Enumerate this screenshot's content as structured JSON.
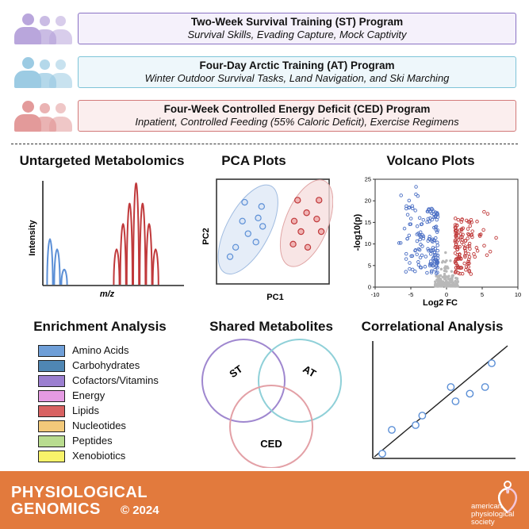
{
  "programs": [
    {
      "title": "Two-Week Survival Training (ST) Program",
      "subtitle": "Survival Skills, Evading Capture, Mock Captivity",
      "color": "#b9a6dc",
      "bg": "#f5f1fb",
      "border": "#8a72c4"
    },
    {
      "title": "Four-Day Arctic Training (AT) Program",
      "subtitle": "Winter Outdoor Survival Tasks, Land Navigation, and Ski Marching",
      "color": "#9ccbe3",
      "bg": "#eef7fb",
      "border": "#7ec4d8"
    },
    {
      "title": "Four-Week Controlled Energy Deficit (CED) Program",
      "subtitle": "Inpatient, Controlled Feeding (55% Caloric Deficit), Exercise Regimens",
      "color": "#e39a9a",
      "bg": "#fbeeee",
      "border": "#d27a7a"
    }
  ],
  "sections": {
    "metabolomics": {
      "title": "Untargeted Metabolomics",
      "ylabel": "Intensity",
      "xlabel": "m/z"
    },
    "pca": {
      "title": "PCA Plots",
      "xlabel": "PC1",
      "ylabel": "PC2"
    },
    "volcano": {
      "title": "Volcano Plots",
      "xlabel": "Log2 FC",
      "ylabel": "-log10(p)"
    },
    "enrichment": {
      "title": "Enrichment Analysis"
    },
    "shared": {
      "title": "Shared Metabolites"
    },
    "correlational": {
      "title": "Correlational Analysis"
    }
  },
  "legend": [
    {
      "label": "Amino Acids",
      "color": "#6f9fd8"
    },
    {
      "label": "Carbohydrates",
      "color": "#4f86b3"
    },
    {
      "label": "Cofactors/Vitamins",
      "color": "#9b7fd0"
    },
    {
      "label": "Energy",
      "color": "#e59be3"
    },
    {
      "label": "Lipids",
      "color": "#d86262"
    },
    {
      "label": "Nucleotides",
      "color": "#f2c97a"
    },
    {
      "label": "Peptides",
      "color": "#b9dc8f"
    },
    {
      "label": "Xenobiotics",
      "color": "#f8f36a"
    }
  ],
  "venn": {
    "sets": [
      "ST",
      "AT",
      "CED"
    ],
    "colors": [
      "#9f87cf",
      "#8fd0d8",
      "#e3a0a6"
    ]
  },
  "chart_data": [
    {
      "type": "line",
      "title": "Untargeted Metabolomics",
      "xlabel": "m/z",
      "ylabel": "Intensity",
      "series": [
        {
          "name": "blue peaks",
          "color": "#5b8fd6",
          "peaks": [
            0.45,
            0.35,
            0.15
          ]
        },
        {
          "name": "red peaks",
          "color": "#c0393b",
          "peaks": [
            0.35,
            0.6,
            0.8,
            1.0,
            0.8,
            0.6,
            0.35
          ]
        }
      ]
    },
    {
      "type": "scatter",
      "title": "PCA Plots",
      "xlabel": "PC1",
      "ylabel": "PC2",
      "series": [
        {
          "name": "group 1",
          "color": "#5b8fd6",
          "points": [
            [
              0.25,
              0.78
            ],
            [
              0.4,
              0.74
            ],
            [
              0.37,
              0.63
            ],
            [
              0.23,
              0.6
            ],
            [
              0.41,
              0.55
            ],
            [
              0.28,
              0.48
            ],
            [
              0.35,
              0.4
            ],
            [
              0.17,
              0.35
            ],
            [
              0.12,
              0.26
            ]
          ]
        },
        {
          "name": "group 2",
          "color": "#c0393b",
          "points": [
            [
              0.72,
              0.8
            ],
            [
              0.91,
              0.8
            ],
            [
              0.8,
              0.68
            ],
            [
              0.69,
              0.6
            ],
            [
              0.89,
              0.62
            ],
            [
              0.75,
              0.5
            ],
            [
              0.93,
              0.5
            ],
            [
              0.68,
              0.38
            ],
            [
              0.81,
              0.35
            ]
          ]
        }
      ]
    },
    {
      "type": "scatter",
      "title": "Volcano Plots",
      "xlabel": "Log2 FC",
      "ylabel": "-log10(p)",
      "xlim": [
        -10,
        10
      ],
      "ylim": [
        0,
        25
      ],
      "xticks": [
        -10,
        -5,
        0,
        5,
        10
      ],
      "yticks": [
        0,
        5,
        10,
        15,
        20,
        25
      ],
      "series": [
        {
          "name": "down",
          "color": "#4b6fc4",
          "region": "left"
        },
        {
          "name": "up",
          "color": "#c03b3b",
          "region": "right"
        },
        {
          "name": "ns",
          "color": "#b0b0b0",
          "region": "center"
        }
      ]
    },
    {
      "type": "scatter",
      "title": "Correlational Analysis",
      "series": [
        {
          "name": "points",
          "color": "#5b8fd6",
          "points": [
            [
              0.1,
              0.05
            ],
            [
              0.2,
              0.3
            ],
            [
              0.45,
              0.35
            ],
            [
              0.52,
              0.45
            ],
            [
              0.82,
              0.75
            ],
            [
              0.87,
              0.6
            ],
            [
              1.02,
              0.68
            ],
            [
              1.18,
              0.75
            ],
            [
              1.25,
              1.0
            ]
          ]
        }
      ],
      "fit_line": true
    }
  ],
  "footer": {
    "journal_line1": "PHYSIOLOGICAL",
    "journal_line2": "GENOMICS",
    "year": "© 2024",
    "society_line1": "american",
    "society_line2": "physiological",
    "society_line3": "society"
  }
}
